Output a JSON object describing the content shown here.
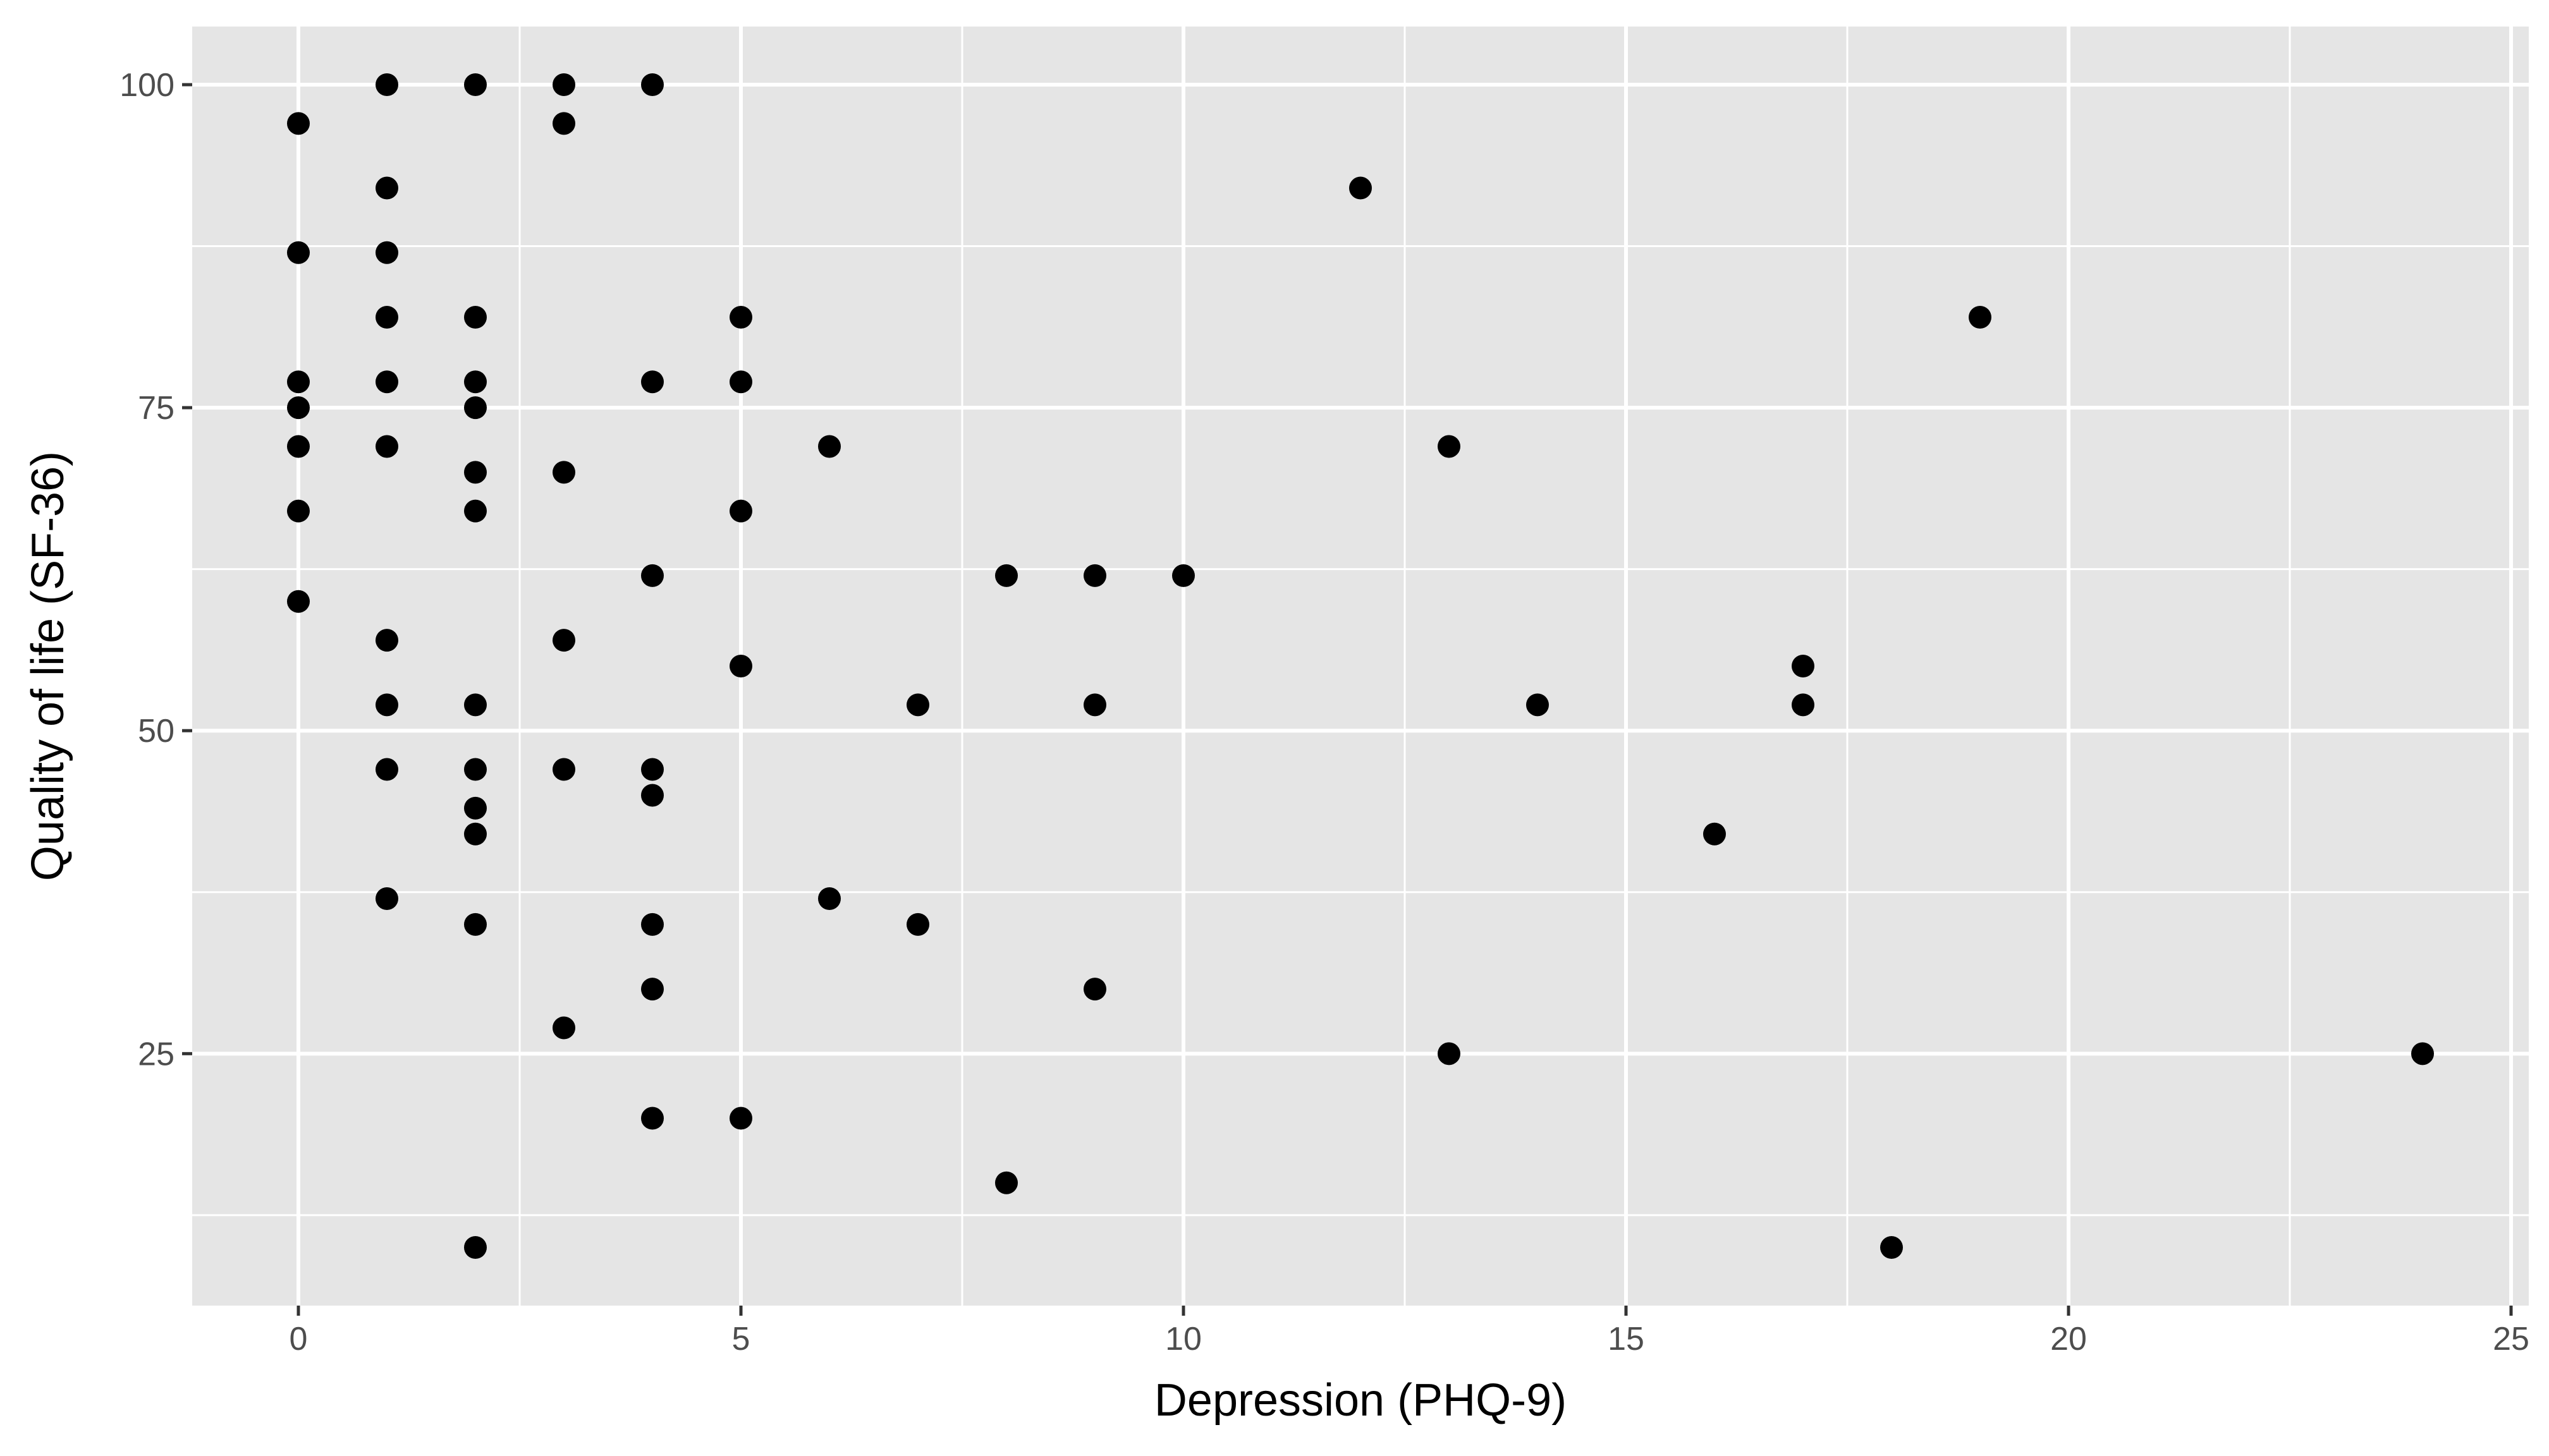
{
  "chart_data": {
    "type": "scatter",
    "title": "",
    "xlabel": "Depression (PHQ-9)",
    "ylabel": "Quality of life (SF-36)",
    "xlim": [
      -1.2,
      25.2
    ],
    "ylim": [
      5.5,
      104.5
    ],
    "x_ticks": [
      0,
      5,
      10,
      15,
      20,
      25
    ],
    "y_ticks": [
      25,
      50,
      75,
      100
    ],
    "x_minor_ticks": [
      2.5,
      7.5,
      12.5,
      17.5,
      22.5
    ],
    "y_minor_ticks": [
      12.5,
      37.5,
      62.5,
      87.5
    ],
    "grid": true,
    "legend": "none",
    "colors": {
      "panel": "#e5e5e5",
      "grid": "#ffffff",
      "point": "#000000",
      "tick_text": "#4d4d4d",
      "axis_title": "#000000"
    },
    "points": [
      {
        "x": 0,
        "y": 97
      },
      {
        "x": 0,
        "y": 87
      },
      {
        "x": 0,
        "y": 77
      },
      {
        "x": 0,
        "y": 75
      },
      {
        "x": 0,
        "y": 72
      },
      {
        "x": 0,
        "y": 67
      },
      {
        "x": 0,
        "y": 60
      },
      {
        "x": 1,
        "y": 100
      },
      {
        "x": 1,
        "y": 92
      },
      {
        "x": 1,
        "y": 87
      },
      {
        "x": 1,
        "y": 82
      },
      {
        "x": 1,
        "y": 77
      },
      {
        "x": 1,
        "y": 72
      },
      {
        "x": 1,
        "y": 57
      },
      {
        "x": 1,
        "y": 52
      },
      {
        "x": 1,
        "y": 47
      },
      {
        "x": 1,
        "y": 37
      },
      {
        "x": 2,
        "y": 100
      },
      {
        "x": 2,
        "y": 82
      },
      {
        "x": 2,
        "y": 77
      },
      {
        "x": 2,
        "y": 75
      },
      {
        "x": 2,
        "y": 70
      },
      {
        "x": 2,
        "y": 67
      },
      {
        "x": 2,
        "y": 52
      },
      {
        "x": 2,
        "y": 47
      },
      {
        "x": 2,
        "y": 44
      },
      {
        "x": 2,
        "y": 42
      },
      {
        "x": 2,
        "y": 35
      },
      {
        "x": 2,
        "y": 10
      },
      {
        "x": 3,
        "y": 100
      },
      {
        "x": 3,
        "y": 97
      },
      {
        "x": 3,
        "y": 70
      },
      {
        "x": 3,
        "y": 57
      },
      {
        "x": 3,
        "y": 47
      },
      {
        "x": 3,
        "y": 27
      },
      {
        "x": 4,
        "y": 100
      },
      {
        "x": 4,
        "y": 77
      },
      {
        "x": 4,
        "y": 62
      },
      {
        "x": 4,
        "y": 47
      },
      {
        "x": 4,
        "y": 45
      },
      {
        "x": 4,
        "y": 35
      },
      {
        "x": 4,
        "y": 30
      },
      {
        "x": 4,
        "y": 20
      },
      {
        "x": 5,
        "y": 82
      },
      {
        "x": 5,
        "y": 77
      },
      {
        "x": 5,
        "y": 67
      },
      {
        "x": 5,
        "y": 55
      },
      {
        "x": 5,
        "y": 20
      },
      {
        "x": 6,
        "y": 72
      },
      {
        "x": 6,
        "y": 37
      },
      {
        "x": 7,
        "y": 52
      },
      {
        "x": 7,
        "y": 35
      },
      {
        "x": 8,
        "y": 62
      },
      {
        "x": 8,
        "y": 15
      },
      {
        "x": 9,
        "y": 62
      },
      {
        "x": 9,
        "y": 52
      },
      {
        "x": 9,
        "y": 30
      },
      {
        "x": 10,
        "y": 62
      },
      {
        "x": 12,
        "y": 92
      },
      {
        "x": 13,
        "y": 72
      },
      {
        "x": 13,
        "y": 25
      },
      {
        "x": 14,
        "y": 52
      },
      {
        "x": 16,
        "y": 42
      },
      {
        "x": 17,
        "y": 55
      },
      {
        "x": 17,
        "y": 52
      },
      {
        "x": 18,
        "y": 10
      },
      {
        "x": 19,
        "y": 82
      },
      {
        "x": 24,
        "y": 25
      }
    ]
  }
}
